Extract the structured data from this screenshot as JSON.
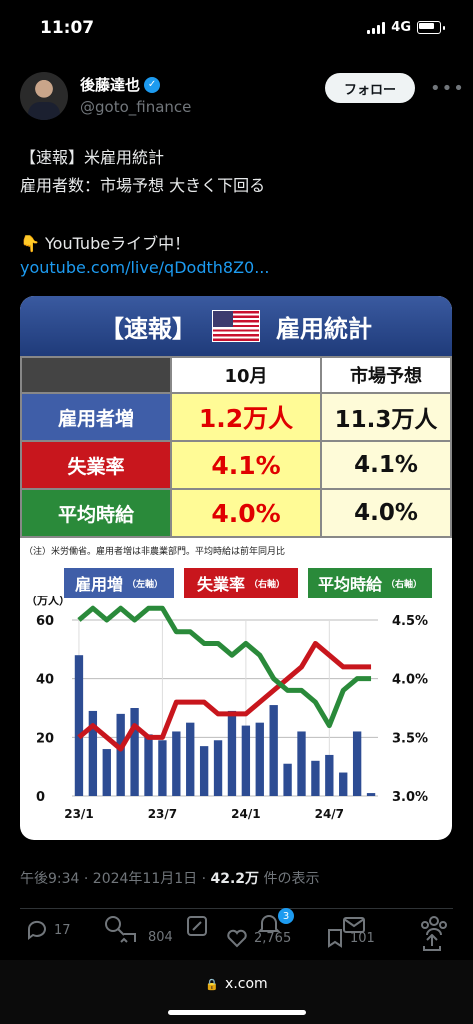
{
  "status_bar": {
    "time": "11:07",
    "network": "4G"
  },
  "author": {
    "name": "後藤達也",
    "handle": "@goto_finance",
    "follow_label": "フォロー"
  },
  "tweet": {
    "lines": [
      "【速報】米雇用統計",
      "雇用者数：市場予想 大きく下回る"
    ],
    "live_line": "👇 YouTubeライブ中！",
    "link": "youtube.com/live/qDodth8Z0..."
  },
  "card": {
    "title": "【速報】",
    "title2": "雇用統計",
    "col_month": "10月",
    "col_forecast": "市場予想",
    "rows": [
      {
        "label": "雇用者増",
        "value": "1.2万人",
        "forecast": "11.3万人",
        "color": "#3f5ea8"
      },
      {
        "label": "失業率",
        "value": "4.1%",
        "forecast": "4.1%",
        "color": "#c8161d"
      },
      {
        "label": "平均時給",
        "value": "4.0%",
        "forecast": "4.0%",
        "color": "#2a8a3a"
      }
    ],
    "note": "（注）米労働省。雇用者増は非農業部門。平均時給は前年同月比",
    "legend": [
      {
        "label": "雇用増",
        "axis": "（左軸）",
        "color": "#3f5ea8"
      },
      {
        "label": "失業率",
        "axis": "（右軸）",
        "color": "#c8161d"
      },
      {
        "label": "平均時給",
        "axis": "（右軸）",
        "color": "#2a8a3a"
      }
    ]
  },
  "chart_data": {
    "type": "bar",
    "left_unit": "（万人）",
    "left_ticks": [
      "60",
      "40",
      "20",
      "0"
    ],
    "right_ticks": [
      "4.5%",
      "4.0%",
      "3.5%",
      "3.0%"
    ],
    "x_ticks": [
      "23/1",
      "23/7",
      "24/1",
      "24/7"
    ],
    "ylim_left": [
      0,
      60
    ],
    "ylim_right": [
      3.0,
      4.5
    ],
    "series": [
      {
        "name": "雇用増",
        "values": [
          48,
          29,
          16,
          28,
          30,
          21,
          19,
          22,
          25,
          17,
          19,
          29,
          24,
          25,
          31,
          11,
          22,
          12,
          14,
          8,
          22,
          1
        ]
      },
      {
        "name": "失業率",
        "values": [
          3.5,
          3.6,
          3.5,
          3.4,
          3.6,
          3.5,
          3.5,
          3.8,
          3.8,
          3.8,
          3.7,
          3.7,
          3.7,
          3.8,
          3.9,
          4.0,
          4.1,
          4.3,
          4.2,
          4.1,
          4.1,
          4.1
        ]
      },
      {
        "name": "平均時給",
        "values": [
          4.5,
          4.6,
          4.5,
          4.6,
          4.5,
          4.6,
          4.6,
          4.4,
          4.4,
          4.3,
          4.3,
          4.2,
          4.3,
          4.2,
          4.0,
          3.9,
          3.9,
          3.8,
          3.6,
          3.9,
          4.0,
          4.0
        ]
      }
    ]
  },
  "meta_line": {
    "time": "午後9:34 · 2024年11月1日 · ",
    "views": "42.2万",
    "views_suffix": " 件の表示"
  },
  "actions": {
    "reply": "17",
    "retweet": "804",
    "like": "2,765",
    "bookmark": "101",
    "badge": "3"
  },
  "url_bar": "x.com"
}
